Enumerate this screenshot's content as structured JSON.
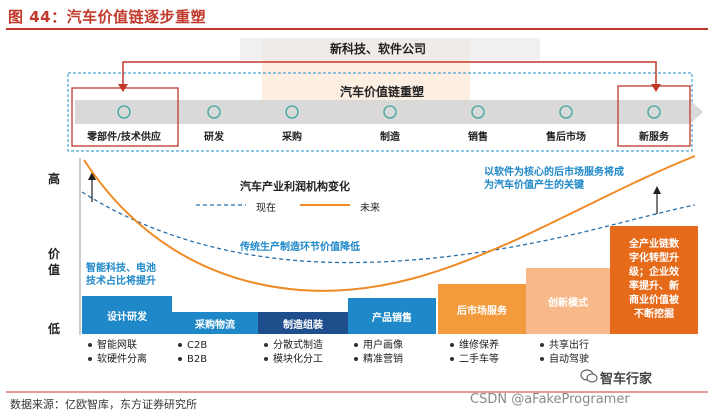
{
  "figure_title": "图 44：汽车价值链逐步重塑",
  "top_banner": "新科技、软件公司",
  "chain_title": "汽车价值链重塑",
  "chain_nodes": [
    "零部件/技术供应",
    "研发",
    "采购",
    "制造",
    "销售",
    "售后市场",
    "新服务"
  ],
  "curve_title": "汽车产业利润机构变化",
  "legend": {
    "now": "现在",
    "future": "未来"
  },
  "annotations": {
    "traditional": "传统生产制造环节价值降低",
    "left": "智能科技、电池\n技术占比将提升",
    "right": "以软件为核心的后市场服务将成\n为汽车价值产生的关键"
  },
  "axis": {
    "high": "高",
    "value": "价\n值",
    "low": "低"
  },
  "stages": [
    {
      "label": "设计研发",
      "color": "#1e88c8",
      "items": [
        "智能网联",
        "软硬件分离"
      ]
    },
    {
      "label": "采购物流",
      "color": "#1e88c8",
      "items": [
        "C2B",
        "B2B"
      ]
    },
    {
      "label": "制造组装",
      "color": "#1f4e8c",
      "items": [
        "分散式制造",
        "模块化分工"
      ]
    },
    {
      "label": "产品销售",
      "color": "#1e88c8",
      "items": [
        "用户画像",
        "精准营销"
      ]
    },
    {
      "label": "后市场服务",
      "color": "#f39a3c",
      "items": [
        "维修保养",
        "二手车等"
      ]
    },
    {
      "label": "创新模式",
      "color": "#f7b98a",
      "items": [
        "共享出行",
        "自动驾驶"
      ]
    },
    {
      "label": "全产业链数\n字化转型升\n级；企业效\n率提升、新\n商业价值被\n不断挖掘",
      "color": "#e56a1a",
      "items": []
    }
  ],
  "source": "数据来源：亿欧智库，东方证券研究所",
  "watermark": "CSDN @aFakeProgramer",
  "brand": "智车行家",
  "colors": {
    "accent_red": "#c0392b",
    "blue": "#1e88c8",
    "orange": "#f39a3c",
    "curve_now": "#2a6fa8",
    "curve_future": "#ef8a24"
  }
}
